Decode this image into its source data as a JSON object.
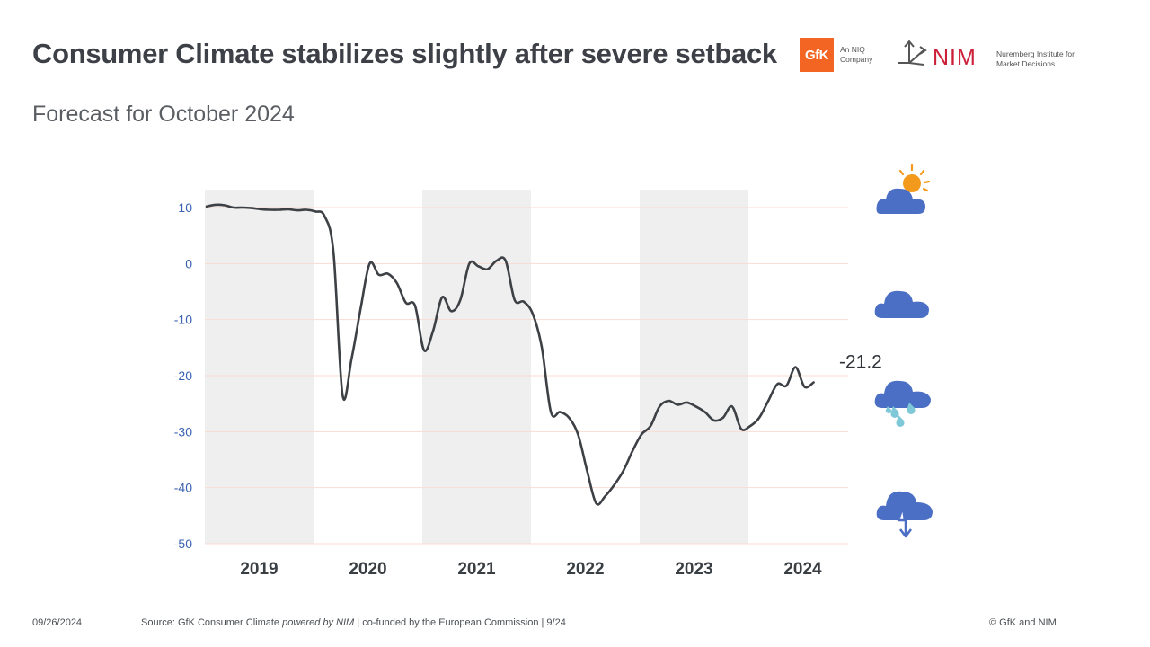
{
  "header": {
    "title": "Consumer Climate stabilizes slightly after severe setback",
    "subtitle": "Forecast for October 2024"
  },
  "logos": {
    "gfk_text": "GfK",
    "gfk_sub": "An NIQ Company",
    "nim_text": "NIM",
    "nim_sub": "Nuremberg Institute for Market Decisions"
  },
  "footer": {
    "date": "09/26/2024",
    "source_prefix": "Source: GfK Consumer Climate ",
    "source_powered": "powered by NIM",
    "source_suffix": " | co-funded by the European Commission | 9/24",
    "copyright": "© GfK and NIM"
  },
  "colors": {
    "line": "#3d4045",
    "shade": "#efefef",
    "grid": "#f7ddd2",
    "tick": "#3a62b0",
    "cloud": "#4a6fc4",
    "sun": "#f39a1d",
    "drop": "#7ec8d8"
  },
  "icons": [
    "sun-cloud-icon",
    "cloud-icon",
    "rain-cloud-icon",
    "storm-cloud-icon"
  ],
  "chart_data": {
    "type": "line",
    "title": "",
    "xlabel": "",
    "ylabel": "",
    "ylim": [
      -50,
      10
    ],
    "yticks": [
      10,
      0,
      -10,
      -20,
      -30,
      -40,
      -50
    ],
    "years": [
      "2019",
      "2020",
      "2021",
      "2022",
      "2023",
      "2024"
    ],
    "shaded_years": [
      "2019",
      "2021",
      "2023"
    ],
    "last_value_label": "-21.2",
    "series": [
      {
        "values": [
          10.2,
          10.5,
          10.4,
          10.0,
          10.0,
          9.9,
          9.7,
          9.6,
          9.6,
          9.7,
          9.5,
          9.6,
          9.3,
          8.5,
          2.0,
          -23.5,
          -17.0,
          -8.0,
          0.0,
          -2.0,
          -1.8,
          -3.5,
          -7.0,
          -7.5,
          -15.5,
          -12.0,
          -6.0,
          -8.5,
          -6.5,
          0.0,
          -0.5,
          -1.0,
          0.5,
          0.5,
          -6.5,
          -6.8,
          -9.0,
          -15.0,
          -26.5,
          -26.5,
          -27.5,
          -30.5,
          -37.0,
          -42.8,
          -41.5,
          -39.5,
          -37.0,
          -33.5,
          -30.5,
          -29.0,
          -25.5,
          -24.5,
          -25.2,
          -24.8,
          -25.5,
          -26.5,
          -28.0,
          -27.5,
          -25.5,
          -29.5,
          -29.0,
          -27.5,
          -24.5,
          -21.5,
          -21.8,
          -18.5,
          -22.0,
          -21.2
        ]
      }
    ]
  }
}
